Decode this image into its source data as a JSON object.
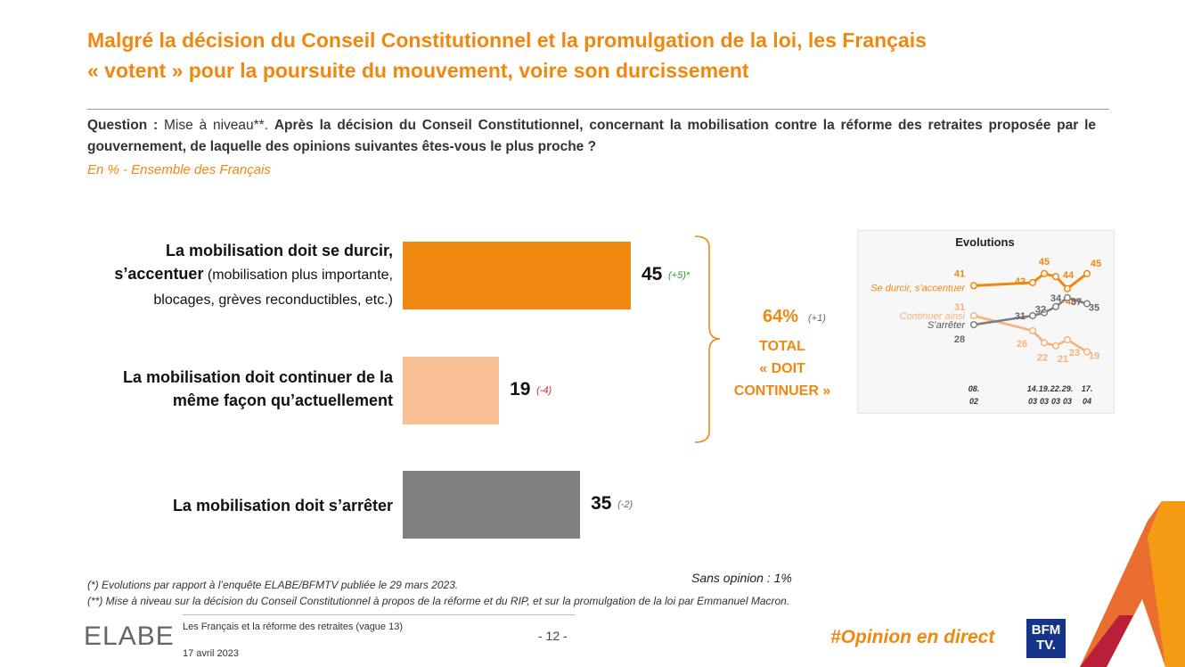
{
  "title_line1": "Malgré la décision du Conseil Constitutionnel et la promulgation de la loi, les Français",
  "title_line2": "« votent » pour la poursuite du mouvement, voire son durcissement",
  "question": {
    "label": "Question :",
    "intro": "Mise à niveau**.",
    "text": "Après la décision du Conseil Constitutionnel, concernant la mobilisation contre la réforme des retraites proposée par le gouvernement, de laquelle des opinions suivantes êtes-vous le plus proche ?"
  },
  "basis": "En % - Ensemble des Français",
  "chart_data": [
    {
      "type": "bar",
      "orientation": "horizontal",
      "categories": [
        "La mobilisation doit se durcir, s’accentuer (mobilisation plus importante, blocages, grèves reconductibles, etc.)",
        "La mobilisation doit continuer de la même façon qu’actuellement",
        "La mobilisation doit s’arrêter"
      ],
      "values": [
        45,
        19,
        35
      ],
      "value_labels": [
        "45",
        "19",
        "35"
      ],
      "changes": [
        "(+5)*",
        "(-4)",
        "(-2)"
      ],
      "colors": [
        "#f0870f",
        "#f8c193",
        "#7f7f7f"
      ],
      "xlim": [
        0,
        70
      ],
      "bracket_total": {
        "value": "64%",
        "change": "(+1)",
        "label_lines": [
          "TOTAL",
          "« DOIT",
          "CONTINUER »"
        ]
      }
    },
    {
      "type": "line",
      "title": "Evolutions",
      "x": [
        "08. 02",
        "14. 03",
        "19. 03",
        "22. 03",
        "29. 03",
        "17. 04"
      ],
      "series": [
        {
          "name": "Se durcir, s’accentuer",
          "values": [
            41,
            42,
            45,
            44,
            40,
            45
          ],
          "color": "#f0870f"
        },
        {
          "name": "Continuer ainsi",
          "values": [
            31,
            26,
            22,
            21,
            23,
            19
          ],
          "color": "#f6b27a"
        },
        {
          "name": "S’arrêter",
          "values": [
            28,
            31,
            32,
            34,
            37,
            35
          ],
          "color": "#7f7f7f"
        }
      ],
      "ylim": [
        15,
        50
      ]
    }
  ],
  "labels": {
    "bar1_bold": "La mobilisation doit se durcir,",
    "bar1_bold2": "s’accentuer",
    "bar1_norm": " (mobilisation plus importante,",
    "bar1_norm2": "blocages, grèves reconductibles, etc.)",
    "bar2_line1": "La mobilisation doit continuer de la",
    "bar2_line2": "même façon qu’actuellement",
    "bar3_line1": "La mobilisation doit s’arrêter"
  },
  "evo_x_top": [
    "08.",
    "14.",
    "19.",
    "22.",
    "29.",
    "17."
  ],
  "evo_x_bottom": [
    "02",
    "03",
    "03",
    "03",
    "03",
    "04"
  ],
  "footnote1": "(*) Evolutions par rapport à l’enquête ELABE/BFMTV publiée le 29 mars 2023.",
  "footnote2": "(**) Mise à niveau sur la décision du Conseil Constitutionnel à propos de la réforme et du RIP, et sur la promulgation de la loi par Emmanuel Macron.",
  "sans_opinion": "Sans opinion : 1%",
  "footer": {
    "logo": "ELABE",
    "study": "Les Français et la réforme des retraites (vague 13)",
    "date": "17 avril 2023",
    "page": "- 12 -",
    "hashtag": "#Opinion en direct",
    "bfm_line1": "BFM",
    "bfm_line2": "TV."
  },
  "colors": {
    "accent": "#f0870f",
    "light": "#f8c193",
    "grey": "#7f7f7f",
    "green": "#2a9d2a",
    "red": "#d62020"
  }
}
